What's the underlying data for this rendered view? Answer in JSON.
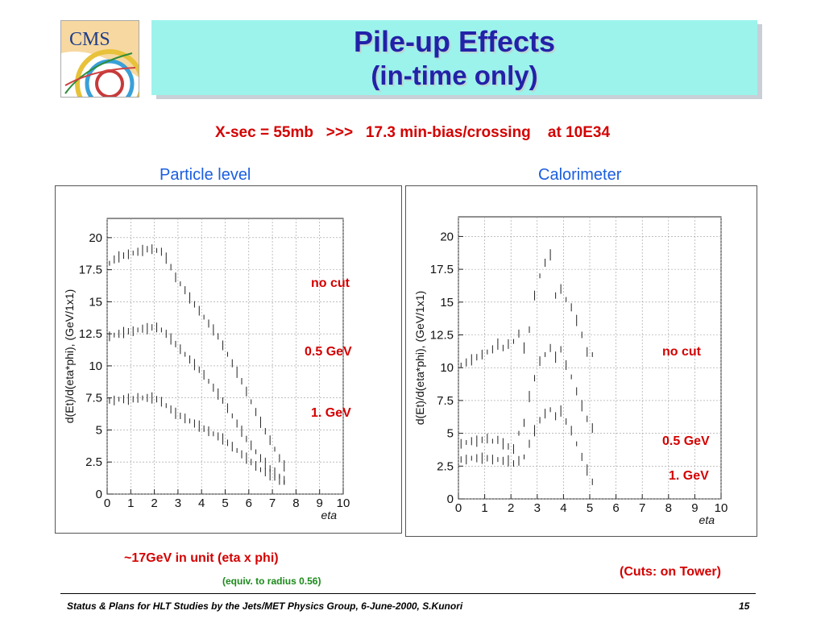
{
  "logo": {
    "text": "CMS"
  },
  "title": {
    "line1": "Pile-up Effects",
    "line2": "(in-time only)"
  },
  "subtitle": "X-sec = 55mb   >>>   17.3 min-bias/crossing    at 10E34",
  "panels": {
    "left_label": "Particle level",
    "right_label": "Calorimeter"
  },
  "chart_data": [
    {
      "type": "scatter",
      "title": "Particle level",
      "xlabel": "eta",
      "ylabel": "d(Et)/d(eta*phi), (GeV/1x1)",
      "xlim": [
        0,
        10
      ],
      "ylim": [
        0,
        21.5
      ],
      "xticks": [
        "0",
        "1",
        "2",
        "3",
        "4",
        "5",
        "6",
        "7",
        "8",
        "9",
        "10"
      ],
      "yticks": [
        "0",
        "2.5",
        "5",
        "7.5",
        "10",
        "12.5",
        "15",
        "17.5",
        "20"
      ],
      "grid": true,
      "series": [
        {
          "name": "no cut",
          "x": [
            0.1,
            0.3,
            0.5,
            0.7,
            0.9,
            1.1,
            1.3,
            1.5,
            1.7,
            1.9,
            2.1,
            2.3,
            2.5,
            2.7,
            2.9,
            3.1,
            3.3,
            3.5,
            3.7,
            3.9,
            4.1,
            4.3,
            4.5,
            4.7,
            4.9,
            5.1,
            5.3,
            5.5,
            5.7,
            5.9,
            6.1,
            6.3,
            6.5,
            6.7,
            6.9,
            7.1,
            7.3,
            7.5
          ],
          "y": [
            18.0,
            18.3,
            18.5,
            18.6,
            18.7,
            18.8,
            18.9,
            19.0,
            19.1,
            19.1,
            19.0,
            18.9,
            18.4,
            17.7,
            16.9,
            16.4,
            15.9,
            15.3,
            14.8,
            14.3,
            13.8,
            13.3,
            12.8,
            12.3,
            11.6,
            10.9,
            10.2,
            9.5,
            8.8,
            8.0,
            7.2,
            6.4,
            5.6,
            4.9,
            4.2,
            3.5,
            2.8,
            2.2
          ]
        },
        {
          "name": "0.5 GeV",
          "x": [
            0.1,
            0.3,
            0.5,
            0.7,
            0.9,
            1.1,
            1.3,
            1.5,
            1.7,
            1.9,
            2.1,
            2.3,
            2.5,
            2.7,
            2.9,
            3.1,
            3.3,
            3.5,
            3.7,
            3.9,
            4.1,
            4.3,
            4.5,
            4.7,
            4.9,
            5.1,
            5.3,
            5.5,
            5.7,
            5.9,
            6.1,
            6.3,
            6.5,
            6.7,
            6.9,
            7.1,
            7.3,
            7.5
          ],
          "y": [
            12.3,
            12.4,
            12.5,
            12.6,
            12.7,
            12.7,
            12.8,
            12.9,
            12.9,
            13.0,
            13.0,
            12.8,
            12.5,
            12.1,
            11.7,
            11.3,
            10.9,
            10.5,
            10.1,
            9.7,
            9.3,
            8.8,
            8.3,
            7.8,
            7.3,
            6.7,
            6.1,
            5.5,
            4.9,
            4.3,
            3.8,
            3.3,
            2.8,
            2.4,
            2.0,
            1.7,
            1.4,
            1.1
          ]
        },
        {
          "name": "1. GeV",
          "x": [
            0.1,
            0.3,
            0.5,
            0.7,
            0.9,
            1.1,
            1.3,
            1.5,
            1.7,
            1.9,
            2.1,
            2.3,
            2.5,
            2.7,
            2.9,
            3.1,
            3.3,
            3.5,
            3.7,
            3.9,
            4.1,
            4.3,
            4.5,
            4.7,
            4.9,
            5.1,
            5.3,
            5.5,
            5.7,
            5.9,
            6.1,
            6.3,
            6.5,
            6.7,
            6.9,
            7.1,
            7.3,
            7.5
          ],
          "y": [
            7.3,
            7.3,
            7.4,
            7.4,
            7.4,
            7.4,
            7.5,
            7.5,
            7.5,
            7.5,
            7.4,
            7.2,
            6.9,
            6.6,
            6.3,
            6.1,
            5.9,
            5.7,
            5.5,
            5.3,
            5.1,
            4.9,
            4.7,
            4.5,
            4.3,
            4.0,
            3.7,
            3.4,
            3.1,
            2.8,
            2.5,
            2.2,
            1.9,
            1.7,
            1.5,
            1.3,
            1.1,
            0.9
          ]
        }
      ]
    },
    {
      "type": "scatter",
      "title": "Calorimeter",
      "xlabel": "eta",
      "ylabel": "d(Et)/d(eta*phi), (GeV/1x1)",
      "xlim": [
        0,
        10
      ],
      "ylim": [
        0,
        21.5
      ],
      "xticks": [
        "0",
        "1",
        "2",
        "3",
        "4",
        "5",
        "6",
        "7",
        "8",
        "9",
        "10"
      ],
      "yticks": [
        "0",
        "2.5",
        "5",
        "7.5",
        "10",
        "12.5",
        "15",
        "17.5",
        "20"
      ],
      "grid": true,
      "series": [
        {
          "name": "no cut",
          "x": [
            0.1,
            0.3,
            0.5,
            0.7,
            0.9,
            1.1,
            1.3,
            1.5,
            1.7,
            1.9,
            2.1,
            2.3,
            2.5,
            2.7,
            2.9,
            3.1,
            3.3,
            3.5,
            3.7,
            3.9,
            4.1,
            4.3,
            4.5,
            4.7,
            4.9,
            5.1
          ],
          "y": [
            10.2,
            10.4,
            10.6,
            10.8,
            11.0,
            11.2,
            11.4,
            11.8,
            11.5,
            11.8,
            12.0,
            12.6,
            11.5,
            12.9,
            15.5,
            17.0,
            18.0,
            18.6,
            15.5,
            16.0,
            15.2,
            14.6,
            13.6,
            12.5,
            11.2,
            11.0
          ]
        },
        {
          "name": "0.5 GeV",
          "x": [
            0.1,
            0.3,
            0.5,
            0.7,
            0.9,
            1.1,
            1.3,
            1.5,
            1.7,
            1.9,
            2.1,
            2.3,
            2.5,
            2.7,
            2.9,
            3.1,
            3.3,
            3.5,
            3.7,
            3.9,
            4.1,
            4.3,
            4.5,
            4.7,
            4.9,
            5.1
          ],
          "y": [
            4.2,
            4.3,
            4.4,
            4.4,
            4.5,
            4.6,
            4.4,
            4.5,
            4.2,
            4.0,
            3.8,
            5.0,
            5.8,
            7.8,
            9.2,
            10.5,
            11.0,
            11.5,
            10.8,
            11.4,
            10.2,
            9.3,
            8.2,
            7.1,
            6.1,
            5.4
          ]
        },
        {
          "name": "1. GeV",
          "x": [
            0.1,
            0.3,
            0.5,
            0.7,
            0.9,
            1.1,
            1.3,
            1.5,
            1.7,
            1.9,
            2.1,
            2.3,
            2.5,
            2.7,
            2.9,
            3.1,
            3.3,
            3.5,
            3.7,
            3.9,
            4.1,
            4.3,
            4.5,
            4.7,
            4.9,
            5.1
          ],
          "y": [
            3.0,
            3.0,
            3.1,
            3.1,
            3.1,
            3.1,
            3.0,
            3.0,
            2.9,
            2.9,
            2.7,
            2.9,
            3.2,
            4.2,
            5.2,
            6.0,
            6.5,
            6.8,
            6.3,
            6.7,
            5.9,
            5.2,
            4.2,
            3.2,
            2.2,
            1.3
          ]
        }
      ]
    }
  ],
  "annotations": {
    "left_no_cut": "no cut",
    "left_05": "0.5 GeV",
    "left_1": "1. GeV",
    "right_no_cut": "no cut",
    "right_05": "0.5 GeV",
    "right_1": "1. GeV",
    "note_17gev": "~17GeV in unit (eta x phi)",
    "note_equiv": "(equiv. to radius 0.56)",
    "note_cuts": "(Cuts: on Tower)"
  },
  "footer": {
    "left": "Status & Plans for HLT Studies by the Jets/MET Physics Group, 6-June-2000, S.Kunori",
    "page": "15"
  },
  "colors": {
    "title_bg": "#9cf3ec",
    "title_text": "#2222a8",
    "red_text": "#d40000",
    "blue_label": "#1a5ee0",
    "green_note": "#1a8a1a"
  }
}
